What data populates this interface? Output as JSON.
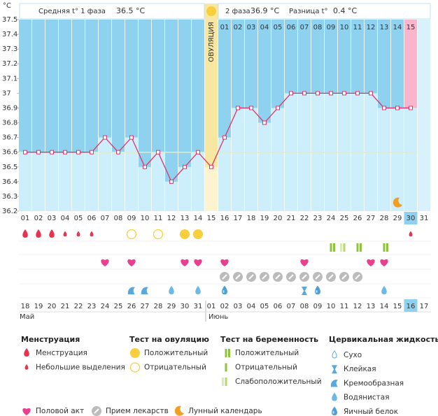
{
  "chart_data": {
    "type": "line",
    "y_unit": "°C",
    "header": {
      "phase1_label": "Средняя t° 1 фаза",
      "phase1_value": "36.5 °C",
      "phase2_label": "2 фаза",
      "phase2_value": "36.9 °C",
      "diff_label": "Разница t°",
      "diff_value": "0.4 °C"
    },
    "ovulation_label": "ОВУЛЯЦИЯ",
    "ovulation_day": 15,
    "highlight_day": 30,
    "phase2_labels": [
      "01",
      "02",
      "03",
      "04",
      "05",
      "06",
      "07",
      "08",
      "09",
      "10",
      "11",
      "12",
      "13",
      "14",
      "15"
    ],
    "categories": [
      "01",
      "02",
      "03",
      "04",
      "05",
      "06",
      "07",
      "08",
      "09",
      "10",
      "11",
      "12",
      "13",
      "14",
      "15",
      "16",
      "17",
      "18",
      "19",
      "20",
      "21",
      "22",
      "23",
      "24",
      "25",
      "26",
      "27",
      "28",
      "29",
      "30",
      "31"
    ],
    "values": [
      36.6,
      36.6,
      36.6,
      36.6,
      36.6,
      36.6,
      36.7,
      36.6,
      36.7,
      36.5,
      36.6,
      36.4,
      36.5,
      36.6,
      36.5,
      36.7,
      36.9,
      36.9,
      36.8,
      36.9,
      37.0,
      37.0,
      37.0,
      37.0,
      37.0,
      37.0,
      37.0,
      36.9,
      36.9,
      36.9,
      null
    ],
    "color": "#e0336a",
    "coverline": 36.6,
    "ylim": [
      36.2,
      37.5
    ],
    "yticks": [
      36.2,
      36.3,
      36.4,
      36.5,
      36.6,
      36.7,
      36.8,
      36.9,
      37,
      37.1,
      37.2,
      37.3,
      37.4,
      37.5
    ],
    "dates": [
      "18",
      "19",
      "20",
      "21",
      "22",
      "23",
      "24",
      "25",
      "26",
      "27",
      "28",
      "29",
      "30",
      "31",
      "01",
      "02",
      "03",
      "04",
      "05",
      "06",
      "07",
      "08",
      "09",
      "10",
      "11",
      "12",
      "13",
      "14",
      "15",
      "16",
      "17"
    ],
    "date_colors": [
      "#444",
      "#444",
      "#444",
      "#444",
      "#444",
      "#d6284a",
      "#d6284a",
      "#444",
      "#444",
      "#444",
      "#444",
      "#444",
      "#d6284a",
      "#d6284a",
      "#444",
      "#444",
      "#444",
      "#444",
      "#444",
      "#d6284a",
      "#d6284a",
      "#444",
      "#444",
      "#444",
      "#444",
      "#444",
      "#d6284a",
      "#d6284a",
      "#444",
      "#444",
      "#444"
    ],
    "months": [
      "Май",
      "Июнь"
    ],
    "legend": [
      {
        "title": "Менструация",
        "items": [
          {
            "label": "Менструация",
            "icon": "drop",
            "color": "#e8354f",
            "days": [
              1,
              2,
              3
            ]
          },
          {
            "label": "Небольшие выделения",
            "icon": "drop-small",
            "color": "#e8354f",
            "days": [
              4,
              5,
              6,
              30
            ]
          }
        ]
      },
      {
        "title": "Тест на овуляцию",
        "items": [
          {
            "label": "Положительный",
            "icon": "circle-filled",
            "color": "#f7cf3c",
            "days": [
              13,
              14
            ]
          },
          {
            "label": "Отрицательный",
            "icon": "circle-empty",
            "color": "#f7cf3c",
            "days": [
              9,
              11
            ]
          }
        ]
      },
      {
        "title": "Тест на беременность",
        "items": [
          {
            "label": "Положительный",
            "icon": "bar-double",
            "color": "#8cc43c",
            "days": [
              24,
              26,
              28
            ]
          },
          {
            "label": "Отрицательный",
            "icon": "bar",
            "color": "#8cc43c",
            "days": []
          },
          {
            "label": "Слабоположительный",
            "icon": "bar-weak",
            "color": "#b5d96e",
            "days": [
              25
            ]
          }
        ]
      },
      {
        "title": "Цервикальная жидкость",
        "items": [
          {
            "label": "Сухо",
            "icon": "dry",
            "color": "#5aa9dc",
            "days": []
          },
          {
            "label": "Клейкая",
            "icon": "sticky",
            "color": "#5aa9dc",
            "days": [
              22
            ]
          },
          {
            "label": "Кремообразная",
            "icon": "creamy",
            "color": "#5aa9dc",
            "days": [
              9,
              10
            ]
          },
          {
            "label": "Водянистая",
            "icon": "watery",
            "color": "#6fb8e6",
            "days": [
              12,
              14,
              28
            ]
          },
          {
            "label": "Яичный белок",
            "icon": "eggwhite",
            "color": "#4d9fd8",
            "days": [
              16,
              23
            ]
          }
        ]
      },
      {
        "items": [
          {
            "label": "Половой акт",
            "icon": "heart",
            "color": "#ea3f8e",
            "days": [
              7,
              9,
              13,
              14,
              16,
              22,
              27,
              28
            ]
          },
          {
            "label": "Прием лекарств",
            "icon": "pill",
            "color": "#bcbcbc",
            "days": [
              16,
              17,
              18,
              19,
              20,
              21,
              22,
              23,
              24,
              25,
              26
            ]
          },
          {
            "label": "Лунный календарь",
            "icon": "moon",
            "color": "#f0a020",
            "days": [
              29
            ]
          }
        ]
      }
    ]
  }
}
